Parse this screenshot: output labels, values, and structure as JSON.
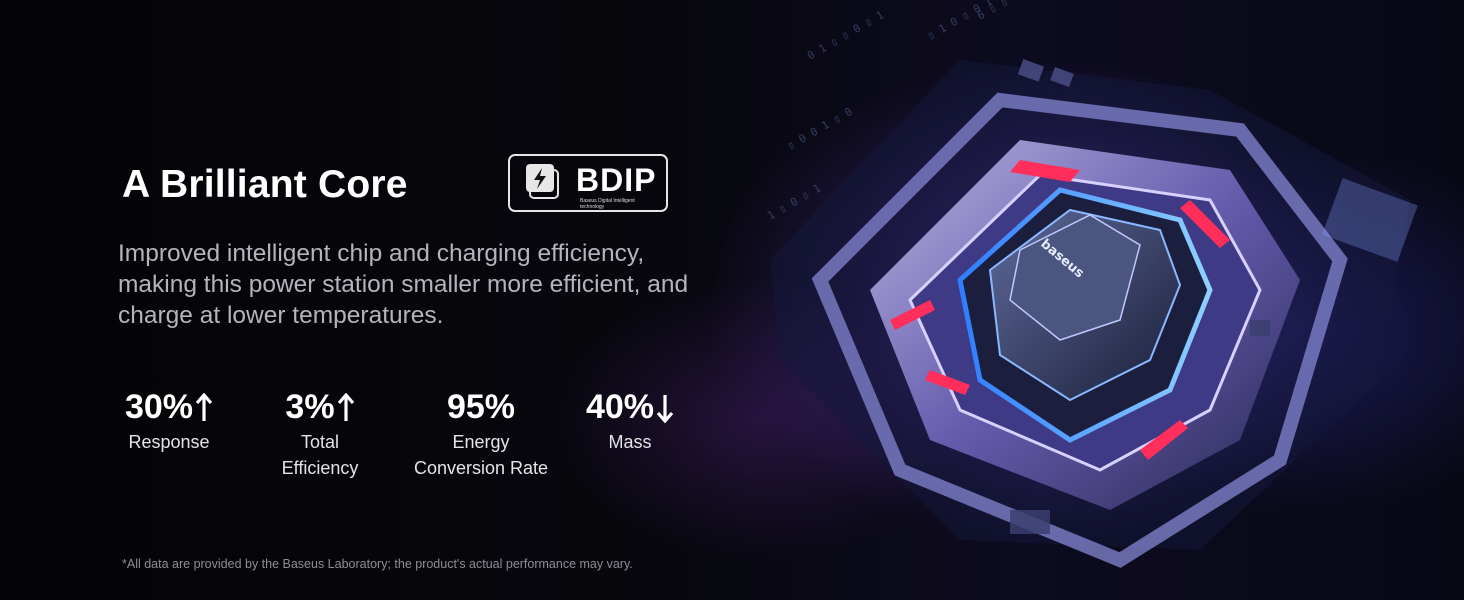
{
  "headline": "A Brilliant Core",
  "badge": {
    "text": "BDIP",
    "subtext": "Baseus Digital Intelligent technology",
    "icon": "lightning-icon"
  },
  "description": "Improved intelligent chip and charging efficiency, making this power station smaller more efficient, and charge at lower temperatures.",
  "stats": [
    {
      "value": "30%",
      "arrow": "up",
      "label": "Response"
    },
    {
      "value": "3%",
      "arrow": "up",
      "label_line1": "Total",
      "label_line2": "Efficiency"
    },
    {
      "value": "95%",
      "arrow": "none",
      "label_line1": "Energy",
      "label_line2": "Conversion Rate"
    },
    {
      "value": "40%",
      "arrow": "down",
      "label": "Mass"
    }
  ],
  "chip_brand": "baseus",
  "footnote": "*All data are provided by the Baseus Laboratory; the product's actual performance may vary.",
  "colors": {
    "background": "#05050a",
    "accent_purple": "#8a6cff",
    "accent_red": "#ff2e5a",
    "accent_blue": "#4aa8ff",
    "text_muted": "#b4b4bc"
  }
}
